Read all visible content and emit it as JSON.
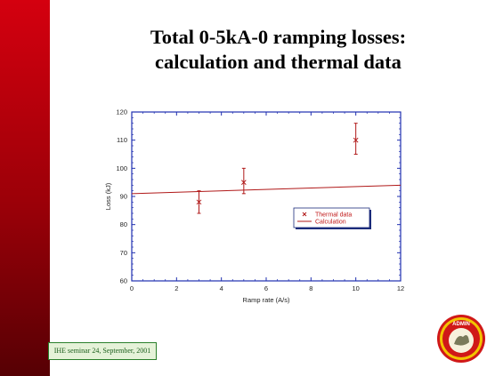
{
  "slide": {
    "title_line1": "Total 0-5kA-0 ramping losses:",
    "title_line2": "calculation and thermal data",
    "footer": "IHE seminar 24, September, 2001",
    "logo_text": "ADMIN"
  },
  "chart_data": {
    "type": "scatter",
    "xlabel": "Ramp rate (A/s)",
    "ylabel": "Loss (kJ)",
    "xlim": [
      0,
      12
    ],
    "ylim": [
      60,
      120
    ],
    "xticks": [
      0,
      2,
      4,
      6,
      8,
      10,
      12
    ],
    "yticks": [
      60,
      70,
      80,
      90,
      100,
      110,
      120
    ],
    "grid": false,
    "legend_position": "right-middle",
    "colors": {
      "series": "#b01818"
    },
    "series": [
      {
        "name": "Thermal data",
        "marker": "x",
        "points": [
          {
            "x": 3,
            "y": 88,
            "err_low": 84,
            "err_high": 92
          },
          {
            "x": 5,
            "y": 95,
            "err_low": 91,
            "err_high": 100
          },
          {
            "x": 10,
            "y": 110,
            "err_low": 105,
            "err_high": 116
          }
        ]
      },
      {
        "name": "Calculation",
        "type": "line",
        "x": [
          0,
          12
        ],
        "y": [
          91,
          94
        ]
      }
    ]
  }
}
